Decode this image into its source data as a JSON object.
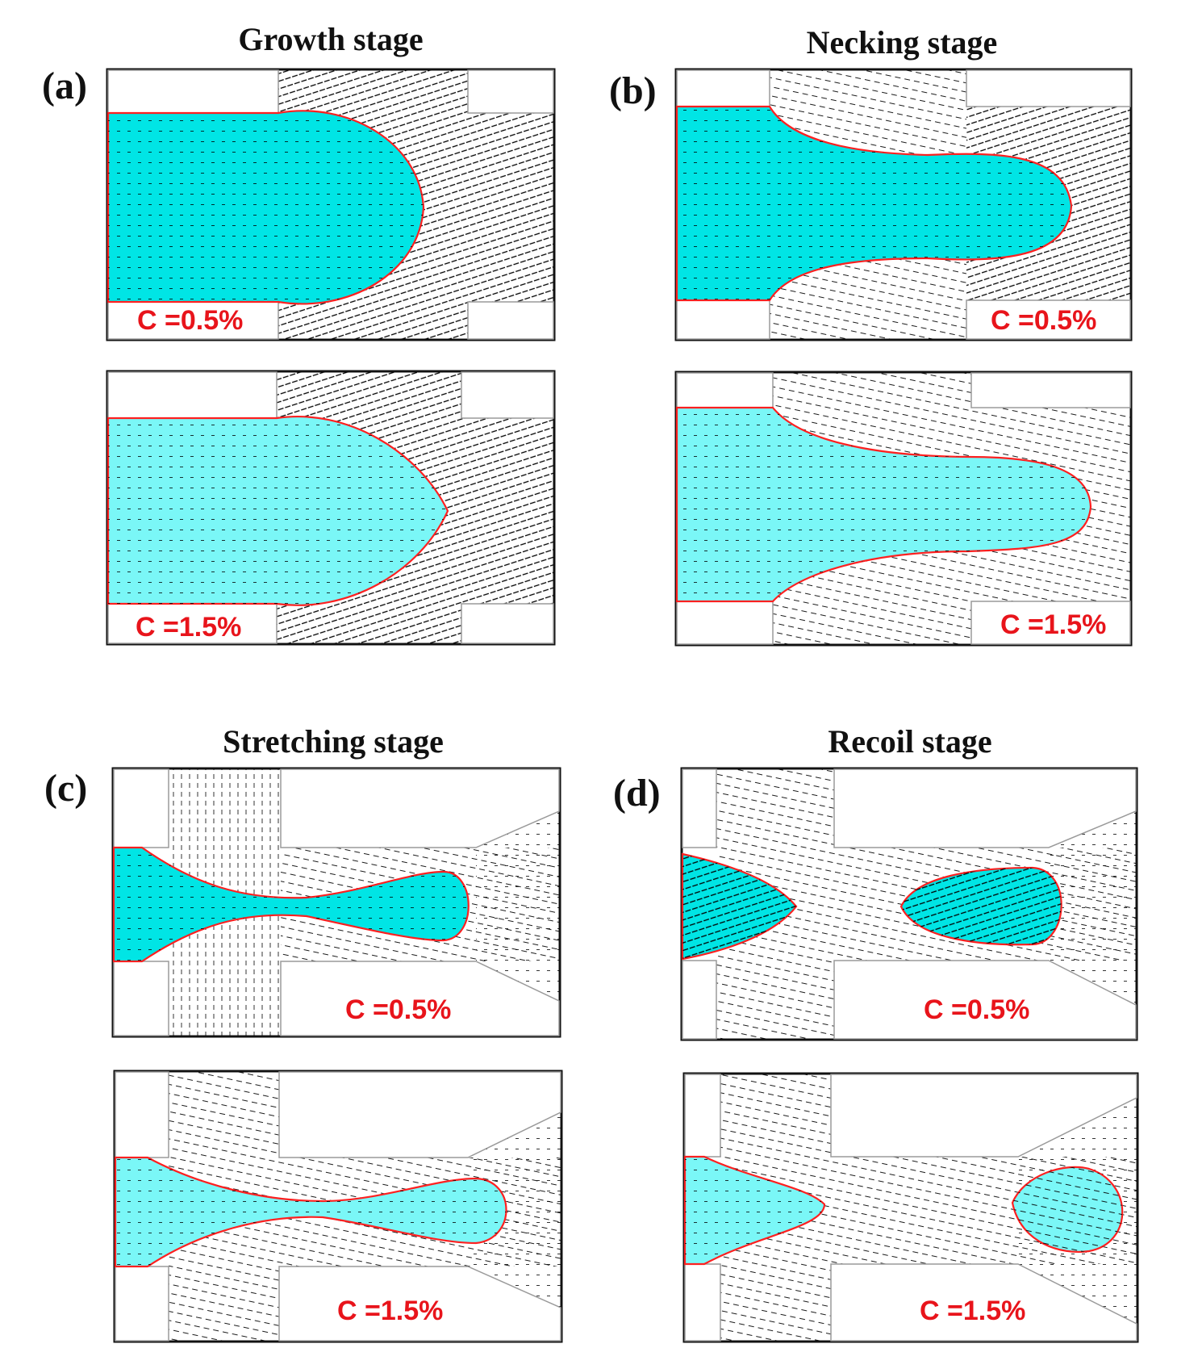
{
  "stages": [
    {
      "key": "a",
      "title": "Growth stage",
      "letter": "(a)",
      "subpanels": [
        {
          "label": "C =0.5%",
          "fluid_color": "#00e5e5"
        },
        {
          "label": "C =1.5%",
          "fluid_color": "#7af7f7"
        }
      ]
    },
    {
      "key": "b",
      "title": "Necking stage",
      "letter": "(b)",
      "subpanels": [
        {
          "label": "C =0.5%",
          "fluid_color": "#00e5e5"
        },
        {
          "label": "C =1.5%",
          "fluid_color": "#7af7f7"
        }
      ]
    },
    {
      "key": "c",
      "title": "Stretching stage",
      "letter": "(c)",
      "subpanels": [
        {
          "label": "C =0.5%",
          "fluid_color": "#00e5e5"
        },
        {
          "label": "C =1.5%",
          "fluid_color": "#7af7f7"
        }
      ]
    },
    {
      "key": "d",
      "title": "Recoil stage",
      "letter": "(d)",
      "subpanels": [
        {
          "label": "C =0.5%",
          "fluid_color": "#00e5e5"
        },
        {
          "label": "C =1.5%",
          "fluid_color": "#7af7f7"
        }
      ]
    }
  ],
  "colors": {
    "interface": "#ff2020",
    "label": "#e8141b",
    "vector": "#000000",
    "frame": "#111111",
    "wall": "#9a9a9a"
  }
}
